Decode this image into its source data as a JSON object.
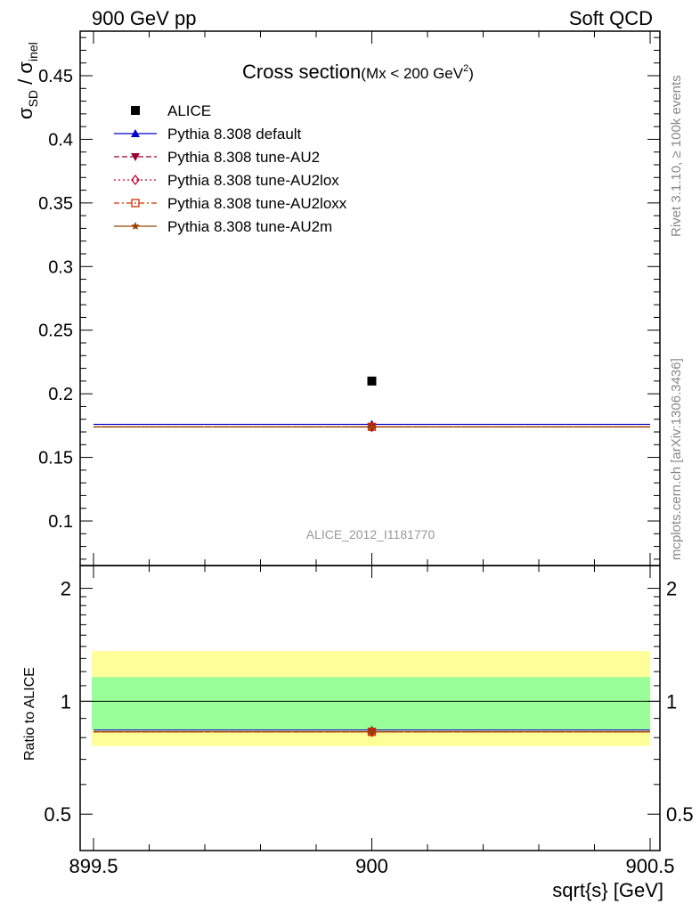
{
  "header": {
    "left_label": "900 GeV pp",
    "right_label": "Soft QCD"
  },
  "side_labels": {
    "rivet": "Rivet 3.1.10, ≥ 100k events",
    "mcplots": "mcplots.cern.ch [arXiv:1306.3436]"
  },
  "colors": {
    "alice": "#000000",
    "default": "#0000cc",
    "au2": "#990033",
    "au2lox": "#cc0033",
    "au2loxx": "#cc3300",
    "au2m": "#994400",
    "band_inner": "#99ff99",
    "band_outer": "#ffff99"
  },
  "chart_data": [
    {
      "type": "scatter",
      "title": "Cross section",
      "title_suffix": "(Mx < 200 GeV",
      "title_suffix_sup": "2",
      "title_suffix_close": ")",
      "ylabel_main": "σ",
      "ylabel_sub1": "SD",
      "ylabel_slash": " / σ",
      "ylabel_sub2": "inel",
      "analysis_label": "ALICE_2012_I1181770",
      "xlim": [
        899.5,
        900.5
      ],
      "ylim": [
        0.065,
        0.485
      ],
      "yticks": [
        "0.1",
        "0.15",
        "0.2",
        "0.25",
        "0.3",
        "0.35",
        "0.4",
        "0.45"
      ],
      "ytick_values": [
        0.1,
        0.15,
        0.2,
        0.25,
        0.3,
        0.35,
        0.4,
        0.45
      ],
      "legend_position": "top-left",
      "series": [
        {
          "name": "ALICE",
          "x": [
            900
          ],
          "y": [
            0.21
          ],
          "marker": "square",
          "line": "none"
        },
        {
          "name": "Pythia 8.308 default",
          "x": [
            900
          ],
          "y": [
            0.176
          ],
          "marker": "triangle-up",
          "line": "solid"
        },
        {
          "name": "Pythia 8.308 tune-AU2",
          "x": [
            900
          ],
          "y": [
            0.174
          ],
          "marker": "triangle-down",
          "line": "dashed"
        },
        {
          "name": "Pythia 8.308 tune-AU2lox",
          "x": [
            900
          ],
          "y": [
            0.174
          ],
          "marker": "diamond-open",
          "line": "dotted"
        },
        {
          "name": "Pythia 8.308 tune-AU2loxx",
          "x": [
            900
          ],
          "y": [
            0.174
          ],
          "marker": "square-open",
          "line": "dashdot"
        },
        {
          "name": "Pythia 8.308 tune-AU2m",
          "x": [
            900
          ],
          "y": [
            0.174
          ],
          "marker": "star",
          "line": "solid"
        }
      ]
    },
    {
      "type": "scatter",
      "ylabel": "Ratio to ALICE",
      "xlabel": "sqrt{s} [GeV]",
      "xlim": [
        899.5,
        900.5
      ],
      "ylim": [
        0.4,
        2.3
      ],
      "y_scale": "log",
      "xticks": [
        "899.5",
        "900",
        "900.5"
      ],
      "xtick_values": [
        899.5,
        900,
        900.5
      ],
      "yticks": [
        "0.5",
        "1",
        "2"
      ],
      "ytick_values": [
        0.5,
        1,
        2
      ],
      "bands": {
        "inner": [
          0.84,
          1.16
        ],
        "outer": [
          0.76,
          1.36
        ]
      },
      "reference_line": 1,
      "series": [
        {
          "name": "Pythia 8.308 default",
          "x": [
            900
          ],
          "y": [
            0.838
          ]
        },
        {
          "name": "Pythia 8.308 tune-AU2",
          "x": [
            900
          ],
          "y": [
            0.829
          ]
        },
        {
          "name": "Pythia 8.308 tune-AU2lox",
          "x": [
            900
          ],
          "y": [
            0.829
          ]
        },
        {
          "name": "Pythia 8.308 tune-AU2loxx",
          "x": [
            900
          ],
          "y": [
            0.829
          ]
        },
        {
          "name": "Pythia 8.308 tune-AU2m",
          "x": [
            900
          ],
          "y": [
            0.829
          ]
        }
      ]
    }
  ]
}
